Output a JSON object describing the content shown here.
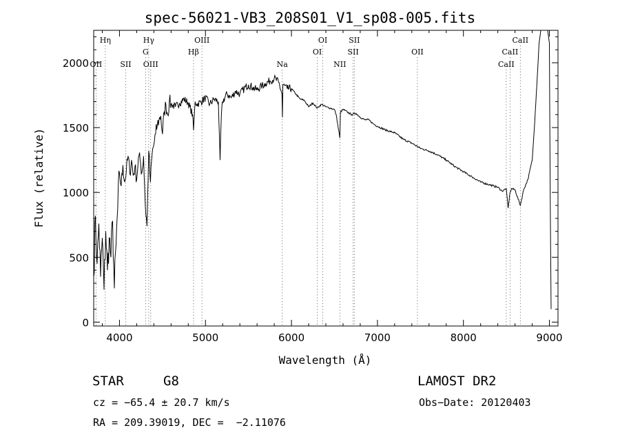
{
  "chart_data": {
    "type": "line",
    "title": "spec-56021-VB3_208S01_V1_sp08-005.fits",
    "xlabel": "Wavelength (Å)",
    "ylabel": "Flux (relative)",
    "xlim": [
      3700,
      9100
    ],
    "ylim": [
      -30,
      2250
    ],
    "xticks": [
      4000,
      5000,
      6000,
      7000,
      8000,
      9000
    ],
    "yticks": [
      0,
      500,
      1000,
      1500,
      2000
    ],
    "grid": false,
    "series": [
      {
        "x": [
          3700,
          3720,
          3740,
          3760,
          3780,
          3800,
          3820,
          3840,
          3860,
          3880,
          3900,
          3920,
          3940,
          3960,
          3980,
          4000,
          4020,
          4040,
          4060,
          4080,
          4100,
          4120,
          4140,
          4160,
          4180,
          4200,
          4220,
          4240,
          4260,
          4280,
          4300,
          4320,
          4340,
          4360,
          4380,
          4400,
          4420,
          4440,
          4460,
          4480,
          4500,
          4520,
          4540,
          4560,
          4580,
          4600,
          4650,
          4700,
          4750,
          4800,
          4850,
          4861,
          4880,
          4900,
          4950,
          5000,
          5050,
          5100,
          5150,
          5170,
          5185,
          5200,
          5250,
          5300,
          5350,
          5400,
          5450,
          5500,
          5550,
          5600,
          5650,
          5700,
          5750,
          5800,
          5850,
          5890,
          5895,
          5900,
          5950,
          6000,
          6050,
          6100,
          6150,
          6200,
          6250,
          6300,
          6350,
          6400,
          6450,
          6500,
          6520,
          6563,
          6570,
          6600,
          6650,
          6700,
          6750,
          6800,
          6850,
          6900,
          6950,
          7000,
          7100,
          7200,
          7300,
          7400,
          7500,
          7600,
          7700,
          7800,
          7900,
          8000,
          8100,
          8200,
          8300,
          8400,
          8450,
          8498,
          8520,
          8542,
          8560,
          8600,
          8662,
          8700,
          8750,
          8800,
          8830,
          8860,
          8880,
          8900,
          8920,
          8950,
          8980,
          9000,
          9010,
          9020
        ],
        "y": [
          350,
          820,
          450,
          760,
          350,
          650,
          250,
          700,
          400,
          650,
          500,
          780,
          260,
          600,
          880,
          1150,
          1050,
          1210,
          1080,
          1170,
          1280,
          1150,
          1250,
          1130,
          1200,
          1100,
          1270,
          1250,
          1150,
          1280,
          900,
          740,
          1320,
          1080,
          1300,
          1370,
          1450,
          1520,
          1560,
          1590,
          1450,
          1620,
          1680,
          1600,
          1700,
          1680,
          1660,
          1690,
          1720,
          1690,
          1600,
          1480,
          1700,
          1680,
          1700,
          1730,
          1680,
          1720,
          1700,
          1250,
          1600,
          1700,
          1760,
          1730,
          1780,
          1760,
          1800,
          1830,
          1810,
          1790,
          1820,
          1840,
          1860,
          1880,
          1850,
          1760,
          1580,
          1830,
          1800,
          1800,
          1760,
          1720,
          1710,
          1660,
          1690,
          1650,
          1680,
          1660,
          1650,
          1640,
          1600,
          1420,
          1620,
          1640,
          1620,
          1600,
          1610,
          1580,
          1560,
          1560,
          1530,
          1510,
          1480,
          1460,
          1410,
          1380,
          1340,
          1320,
          1290,
          1250,
          1200,
          1160,
          1120,
          1080,
          1060,
          1040,
          1010,
          1030,
          880,
          1000,
          1030,
          1020,
          900,
          1020,
          1100,
          1250,
          1550,
          1900,
          2150,
          2250,
          2250,
          2250,
          2250,
          2150,
          900,
          100
        ]
      }
    ],
    "line_labels": [
      {
        "x": 3835,
        "text": "Hη",
        "row": 1
      },
      {
        "x": 3727,
        "text": "OII",
        "row": 3
      },
      {
        "x": 4072,
        "text": "SII",
        "row": 3
      },
      {
        "x": 4340,
        "text": "Hγ",
        "row": 1
      },
      {
        "x": 4304,
        "text": "G",
        "row": 2
      },
      {
        "x": 4363,
        "text": "OIII",
        "row": 3
      },
      {
        "x": 4861,
        "text": "Hβ",
        "row": 2
      },
      {
        "x": 4959,
        "text": "OIII",
        "row": 1
      },
      {
        "x": 5893,
        "text": "Na",
        "row": 3
      },
      {
        "x": 6364,
        "text": "OI",
        "row": 1
      },
      {
        "x": 6300,
        "text": "OI",
        "row": 2
      },
      {
        "x": 6563,
        "text": "NII",
        "row": 3
      },
      {
        "x": 6731,
        "text": "SII",
        "row": 1
      },
      {
        "x": 6717,
        "text": "SII",
        "row": 2
      },
      {
        "x": 7465,
        "text": "OII",
        "row": 2
      },
      {
        "x": 8662,
        "text": "CaII",
        "row": 1
      },
      {
        "x": 8542,
        "text": "CaII",
        "row": 2
      },
      {
        "x": 8498,
        "text": "CaII",
        "row": 3
      }
    ]
  },
  "info": {
    "class_label": "STAR",
    "subclass": "G8",
    "survey": "LAMOST DR2",
    "cz": "cz = −65.4 ± 20.7 km/s",
    "obs_date": "Obs−Date: 20120403",
    "coords": "RA = 209.39019, DEC =  −2.11076"
  }
}
